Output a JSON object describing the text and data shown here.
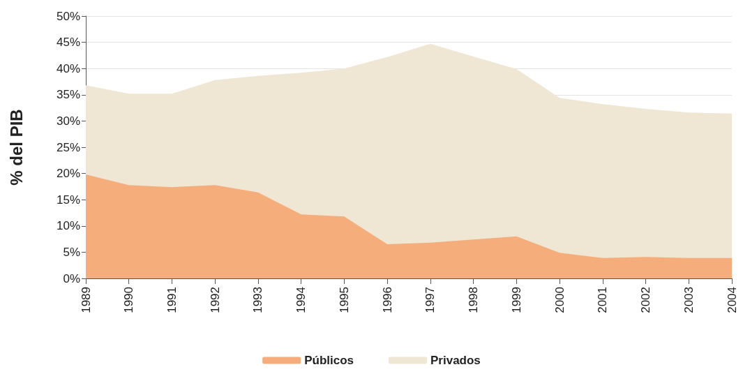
{
  "chart_data": {
    "type": "area",
    "ylabel": "% del PIB",
    "categories": [
      "1989",
      "1990",
      "1991",
      "1992",
      "1993",
      "1994",
      "1995",
      "1996",
      "1997",
      "1998",
      "1999",
      "2000",
      "2001",
      "2002",
      "2003",
      "2004"
    ],
    "series": [
      {
        "name": "Públicos",
        "color": "#f5ad7c",
        "values": [
          19.8,
          17.8,
          17.4,
          17.8,
          16.4,
          12.2,
          11.8,
          6.5,
          6.8,
          7.4,
          8.0,
          4.9,
          3.9,
          4.1,
          3.9,
          3.9
        ]
      },
      {
        "name": "Privados",
        "color": "#efe7d4",
        "values": [
          36.8,
          35.2,
          35.2,
          37.8,
          38.6,
          39.2,
          40.0,
          42.2,
          44.7,
          42.3,
          39.9,
          34.4,
          33.2,
          32.3,
          31.6,
          31.4
        ]
      }
    ],
    "ylim": [
      0,
      50
    ],
    "yticks": [
      {
        "value": 0,
        "label": "0%"
      },
      {
        "value": 5,
        "label": "5%"
      },
      {
        "value": 10,
        "label": "10%"
      },
      {
        "value": 15,
        "label": "15%"
      },
      {
        "value": 20,
        "label": "20%"
      },
      {
        "value": 25,
        "label": "25%"
      },
      {
        "value": 30,
        "label": "30%"
      },
      {
        "value": 35,
        "label": "35%"
      },
      {
        "value": 40,
        "label": "40%"
      },
      {
        "value": 45,
        "label": "45%"
      },
      {
        "value": 50,
        "label": "50%"
      }
    ],
    "grid": "y",
    "legend": "bottom",
    "marker": "none"
  }
}
